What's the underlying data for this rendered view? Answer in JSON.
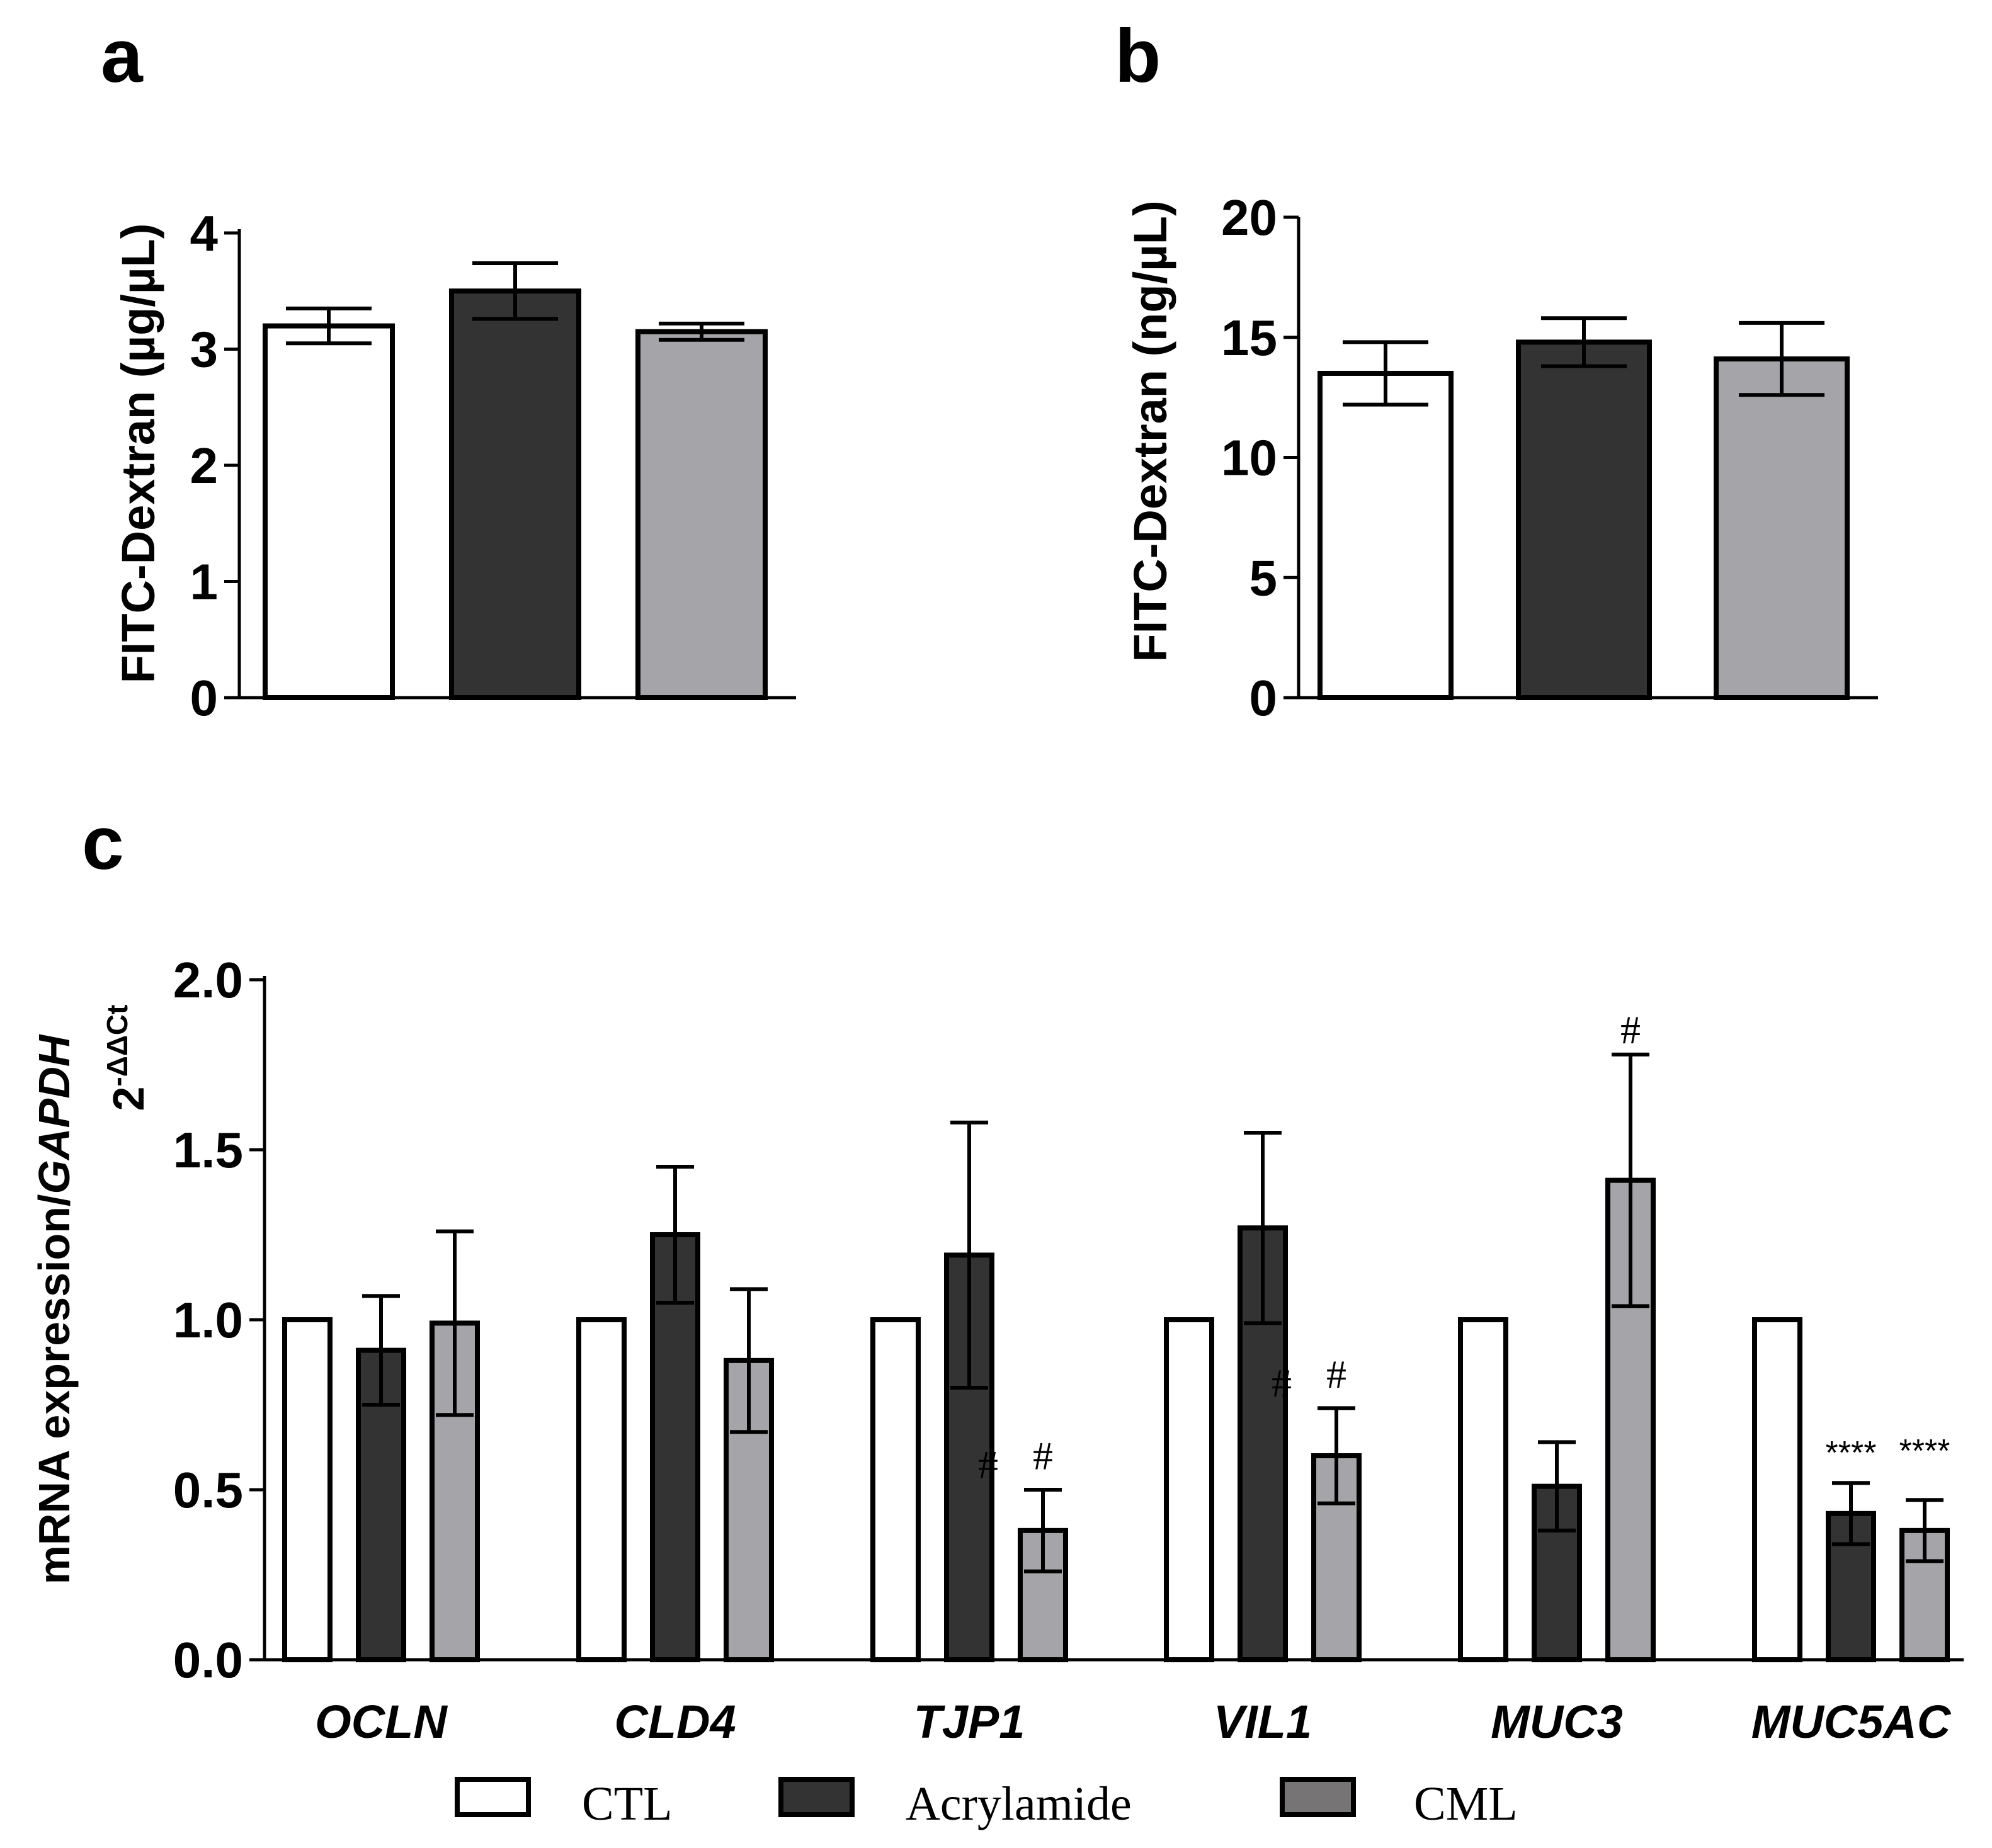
{
  "colors": {
    "CTL": "#ffffff",
    "Acrylamide": "#333333",
    "CML": "#a5a5a9",
    "legend_CML": "#767474"
  },
  "chart_data": [
    {
      "panel": "a",
      "type": "bar",
      "categories": [
        "CTL",
        "Acrylamide",
        "CML"
      ],
      "values": [
        3.2,
        3.5,
        3.15
      ],
      "errors": [
        0.15,
        0.24,
        0.07
      ],
      "ylabel": "FITC-Dextran (µg/µL)",
      "ylim": [
        0,
        4
      ],
      "yticks": [
        "0",
        "1",
        "2",
        "3",
        "4"
      ]
    },
    {
      "panel": "b",
      "type": "bar",
      "categories": [
        "CTL",
        "Acrylamide",
        "CML"
      ],
      "values": [
        13.5,
        14.8,
        14.1
      ],
      "errors": [
        1.3,
        1.0,
        1.5
      ],
      "ylabel": "FITC-Dextran (ng/µL)",
      "ylim": [
        0,
        20
      ],
      "yticks": [
        "0",
        "5",
        "10",
        "15",
        "20"
      ]
    },
    {
      "panel": "c",
      "type": "bar",
      "categories": [
        "OCLN",
        "CLD4",
        "TJP1",
        "VIL1",
        "MUC3",
        "MUC5AC"
      ],
      "series": [
        {
          "name": "CTL",
          "values": [
            1.0,
            1.0,
            1.0,
            1.0,
            1.0,
            1.0
          ],
          "errors": [
            0,
            0,
            0,
            0,
            0,
            0
          ]
        },
        {
          "name": "Acrylamide",
          "values": [
            0.91,
            1.25,
            1.19,
            1.27,
            0.51,
            0.43
          ],
          "errors": [
            0.16,
            0.2,
            0.39,
            0.28,
            0.13,
            0.09
          ]
        },
        {
          "name": "CML",
          "values": [
            0.99,
            0.88,
            0.38,
            0.6,
            1.41,
            0.38
          ],
          "errors": [
            0.27,
            0.21,
            0.12,
            0.14,
            0.37,
            0.09
          ]
        }
      ],
      "annotations": [
        {
          "category": "TJP1",
          "series": "Acrylamide",
          "text": "#"
        },
        {
          "category": "TJP1",
          "series": "CML",
          "text": "#"
        },
        {
          "category": "VIL1",
          "series": "Acrylamide",
          "text": "#"
        },
        {
          "category": "VIL1",
          "series": "CML",
          "text": "#"
        },
        {
          "category": "MUC3",
          "series": "CML",
          "text": "#"
        },
        {
          "category": "MUC5AC",
          "series": "Acrylamide",
          "text": "****"
        },
        {
          "category": "MUC5AC",
          "series": "CML",
          "text": "****"
        }
      ],
      "ylabel_main": "mRNA expression/",
      "ylabel_gene": "GAPDH",
      "ylabel_sub_base": "2",
      "ylabel_sub_sup": "-ΔΔCt",
      "ylim": [
        0,
        2
      ],
      "yticks": [
        "0.0",
        "0.5",
        "1.0",
        "1.5",
        "2.0"
      ]
    }
  ],
  "panel_labels": [
    "a",
    "b",
    "c"
  ],
  "legend": [
    "CTL",
    "Acrylamide",
    "CML"
  ]
}
